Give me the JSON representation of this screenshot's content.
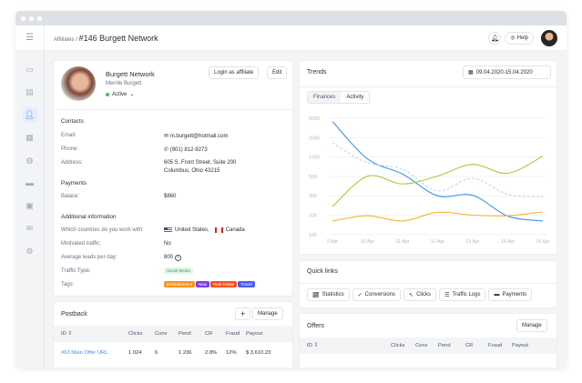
{
  "header": {
    "breadcrumb_parent": "Affiliates /",
    "title": "#146 Burgett Network",
    "help": "Help"
  },
  "sidebar": {
    "items": [
      "dashboard-icon",
      "reports-icon",
      "affiliates-icon",
      "offers-icon",
      "globe-icon",
      "payments-icon",
      "billing-icon",
      "mail-icon",
      "settings-icon"
    ],
    "active": "affiliates-icon"
  },
  "profile": {
    "name": "Burgett Network",
    "person": "Merrile Burgett",
    "status": "Active",
    "login_btn": "Login as affiliate",
    "edit_btn": "Edit"
  },
  "contacts": {
    "heading": "Contacts",
    "email_label": "Email:",
    "email": "m.burgett@hotmail.com",
    "phone_label": "Phone:",
    "phone": "(901) 812-9273",
    "address_label": "Address:",
    "address1": "605 S. Front Street, Suite 200",
    "address2": "Columbus, Ohio 43215"
  },
  "payments": {
    "heading": "Payments",
    "balance_label": "Balace:",
    "balance": "$860"
  },
  "additional": {
    "heading": "Additional information",
    "countries_label": "Which countries do you work with:",
    "country1": "United States,",
    "country2": "Canada",
    "motivated_label": "Motivated traffic:",
    "motivated": "No",
    "leads_label": "Average leads per day:",
    "leads": "800",
    "traffic_label": "Traffic Type:",
    "traffic": "Social Media",
    "tags_label": "Tags:",
    "tags": [
      {
        "label": "Entertainment",
        "color": "#f7931e"
      },
      {
        "label": "New",
        "color": "#7b3fe4"
      },
      {
        "label": "Real Estate",
        "color": "#f4511e"
      },
      {
        "label": "Travel",
        "color": "#4a5cf0"
      }
    ]
  },
  "postback": {
    "title": "Postback",
    "manage": "Manage",
    "columns": [
      "ID",
      "Clicks",
      "Conv",
      "Pend",
      "CR",
      "Fraud",
      "Payout"
    ],
    "rows": [
      [
        "#63  Main Offer URL",
        "1 024",
        "6",
        "1 236",
        "2.8%",
        "12%",
        "$ 3.610.23"
      ]
    ]
  },
  "trends": {
    "title": "Trends",
    "date_range": "09.04.2020-15.04.2020",
    "tabs": [
      "Finances",
      "Activity"
    ],
    "active_tab": "Finances"
  },
  "chart_data": {
    "type": "line",
    "categories": [
      "9 Apr",
      "10 Apr",
      "11 Apr",
      "12 Apr",
      "13 Apr",
      "14 Apr",
      "15 Apr"
    ],
    "y_ticks": [
      5000,
      2000,
      1000,
      500,
      300,
      200,
      100
    ],
    "grid": true,
    "series": [
      {
        "color": "#3b95ea",
        "style": "solid",
        "values": [
          4500,
          950,
          560,
          300,
          305,
          195,
          170
        ]
      },
      {
        "color": "#bcd9f7",
        "style": "dashed",
        "values": [
          1730,
          850,
          690,
          350,
          480,
          315,
          295
        ]
      },
      {
        "color": "#a8c93a",
        "style": "solid",
        "values": [
          244,
          505,
          422,
          510,
          810,
          580,
          1050
        ]
      },
      {
        "color": "#f5b52e",
        "style": "solid",
        "values": [
          170,
          197,
          170,
          215,
          200,
          197,
          217
        ]
      }
    ]
  },
  "quicklinks": {
    "title": "Quick links",
    "items": [
      "Statistics",
      "Conversions",
      "Clicks",
      "Traffic Logs",
      "Payments"
    ]
  },
  "offers": {
    "title": "Offers",
    "manage": "Manage",
    "columns": [
      "ID",
      "Clicks",
      "Conv",
      "Pend",
      "CR",
      "Fraud",
      "Payout"
    ]
  }
}
